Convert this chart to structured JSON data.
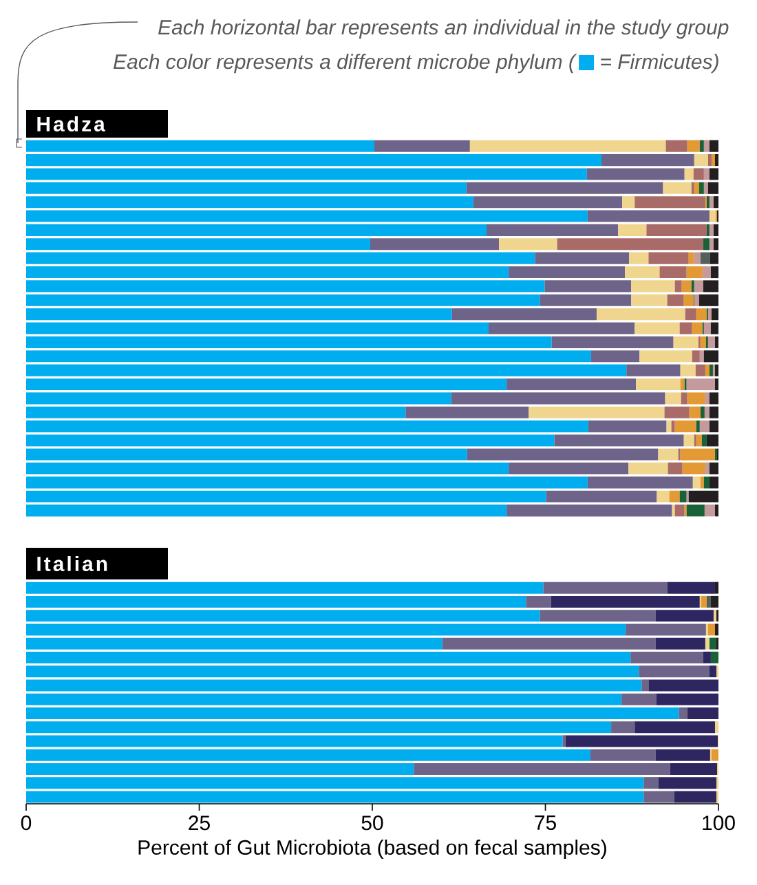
{
  "chart_data": [
    {
      "type": "bar",
      "orientation": "horizontal",
      "stacked": true,
      "title": "Hadza",
      "annotations": [
        "Each horizontal bar represents an individual in the study group",
        "Each color represents a different microbe phylum (",
        "= Firmicutes)"
      ],
      "categories": [
        null,
        null,
        null,
        null,
        null,
        null,
        null,
        null,
        null,
        null,
        null,
        null,
        null,
        null,
        null,
        null,
        null,
        null,
        null,
        null,
        null,
        null,
        null,
        null,
        null,
        null,
        null
      ],
      "xlim": [
        0,
        100
      ],
      "tick_labels": false,
      "series": [
        {
          "color": "#00aeef",
          "values": [
            50.3,
            83.1,
            81.0,
            63.6,
            64.6,
            81.1,
            66.5,
            49.7,
            73.5,
            69.7,
            74.9,
            74.2,
            61.5,
            66.8,
            75.9,
            81.6,
            86.7,
            69.4,
            61.4,
            54.8,
            81.2,
            76.3,
            63.7,
            69.7,
            81.1,
            75.1,
            69.4
          ]
        },
        {
          "color": "#6e6389",
          "values": [
            13.8,
            13.4,
            14.1,
            28.4,
            21.5,
            17.6,
            19.0,
            18.6,
            13.6,
            16.8,
            12.5,
            13.2,
            20.9,
            21.1,
            17.6,
            7.0,
            7.8,
            18.7,
            30.9,
            17.8,
            11.3,
            18.7,
            27.6,
            17.3,
            15.2,
            16.0,
            23.9
          ]
        },
        {
          "color": "#efd58e",
          "values": [
            28.3,
            2.0,
            1.3,
            4.1,
            1.8,
            0.9,
            4.1,
            8.4,
            2.8,
            5.0,
            6.3,
            5.2,
            12.8,
            6.5,
            3.6,
            7.6,
            2.2,
            6.4,
            2.3,
            19.6,
            0.7,
            1.5,
            2.9,
            5.7,
            1.1,
            1.8,
            0.4
          ]
        },
        {
          "color": "#a86b68",
          "values": [
            3.1,
            0.5,
            1.5,
            0.4,
            10.2,
            null,
            8.7,
            21.1,
            5.8,
            3.9,
            1.0,
            2.4,
            1.6,
            1.8,
            0.3,
            1.1,
            1.4,
            null,
            0.9,
            3.6,
            0.5,
            0.3,
            0.3,
            2.1,
            null,
            null,
            1.4
          ]
        },
        {
          "color": "#e39a34",
          "values": [
            1.8,
            0.5,
            null,
            0.7,
            0.2,
            0.2,
            null,
            null,
            0.8,
            2.3,
            1.4,
            1.4,
            1.5,
            1.5,
            0.8,
            null,
            0.6,
            0.6,
            2.6,
            1.6,
            3.1,
            0.8,
            5.0,
            3.3,
            0.5,
            1.5,
            0.3
          ]
        },
        {
          "color": "#1a6137",
          "values": [
            0.6,
            null,
            null,
            0.7,
            0.4,
            null,
            0.4,
            0.9,
            null,
            null,
            0.4,
            0.1,
            0.2,
            0.2,
            0.3,
            null,
            0.5,
            0.3,
            null,
            0.6,
            0.5,
            0.7,
            0.3,
            null,
            0.8,
            1.0,
            2.6
          ]
        },
        {
          "color": "#c49a9c",
          "values": [
            0.8,
            null,
            0.8,
            0.6,
            0.6,
            null,
            0.6,
            0.6,
            0.9,
            1.2,
            1.3,
            0.7,
            0.5,
            1.0,
            1.0,
            0.6,
            0.3,
            4.1,
            0.6,
            0.7,
            1.4,
            null,
            null,
            0.6,
            null,
            0.3,
            1.5
          ]
        },
        {
          "color": "#55605a",
          "values": [
            null,
            null,
            null,
            null,
            null,
            null,
            null,
            null,
            1.4,
            null,
            null,
            null,
            null,
            null,
            null,
            null,
            null,
            null,
            null,
            null,
            null,
            null,
            null,
            null,
            null,
            null,
            null
          ]
        },
        {
          "color": "#231f20",
          "values": [
            1.3,
            0.5,
            1.3,
            1.5,
            0.7,
            0.2,
            0.7,
            0.7,
            1.2,
            1.1,
            2.2,
            2.8,
            1.0,
            1.1,
            0.5,
            2.1,
            0.5,
            0.5,
            1.3,
            1.3,
            1.3,
            1.7,
            0.2,
            1.3,
            1.3,
            4.3,
            0.5
          ]
        }
      ]
    },
    {
      "type": "bar",
      "orientation": "horizontal",
      "stacked": true,
      "title": "Italian",
      "xlabel": "Percent of Gut Microbiota (based on fecal samples)",
      "categories": [
        null,
        null,
        null,
        null,
        null,
        null,
        null,
        null,
        null,
        null,
        null,
        null,
        null,
        null,
        null,
        null
      ],
      "xlim": [
        0,
        100
      ],
      "xticks": [
        0,
        25,
        50,
        75,
        100
      ],
      "tick_labels": "x",
      "series": [
        {
          "color": "#00aeef",
          "values": [
            74.7,
            72.2,
            74.2,
            86.6,
            60.1,
            87.3,
            88.5,
            88.9,
            86.0,
            94.3,
            84.5,
            77.5,
            81.5,
            56.0,
            89.2,
            89.2
          ]
        },
        {
          "color": "#6e6389",
          "values": [
            17.9,
            3.6,
            16.7,
            11.6,
            30.8,
            10.5,
            10.2,
            1.0,
            5.0,
            1.2,
            3.4,
            0.4,
            9.4,
            37.0,
            2.1,
            4.4
          ]
        },
        {
          "color": "#2e2660",
          "values": [
            6.9,
            21.5,
            8.4,
            null,
            7.2,
            1.1,
            1.0,
            10.1,
            9.0,
            4.5,
            11.6,
            22.0,
            7.9,
            6.8,
            8.4,
            6.1
          ]
        },
        {
          "color": "#efd58e",
          "values": [
            null,
            0.2,
            0.4,
            0.3,
            0.6,
            null,
            0.3,
            null,
            null,
            null,
            0.5,
            0.1,
            0.2,
            0.2,
            0.3,
            0.3
          ]
        },
        {
          "color": "#e39a34",
          "values": [
            null,
            0.8,
            null,
            1.0,
            null,
            null,
            null,
            null,
            null,
            null,
            null,
            null,
            1.0,
            null,
            null,
            null
          ]
        },
        {
          "color": "#1a6137",
          "values": [
            null,
            null,
            null,
            null,
            1.0,
            1.1,
            null,
            null,
            null,
            null,
            null,
            null,
            null,
            null,
            null,
            null
          ]
        },
        {
          "color": "#55605a",
          "values": [
            null,
            0.6,
            null,
            null,
            null,
            null,
            null,
            null,
            null,
            null,
            null,
            null,
            null,
            null,
            null,
            null
          ]
        },
        {
          "color": "#231f20",
          "values": [
            0.5,
            1.1,
            0.3,
            0.5,
            0.3,
            null,
            null,
            null,
            null,
            null,
            null,
            null,
            null,
            null,
            null,
            null
          ]
        }
      ]
    }
  ]
}
